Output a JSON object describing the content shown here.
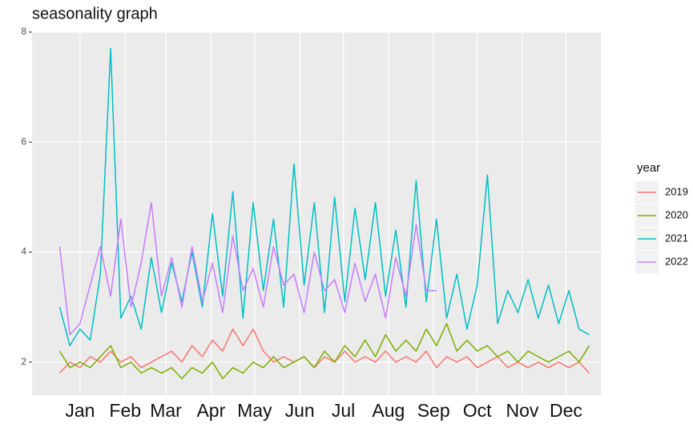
{
  "chart_data": {
    "type": "line",
    "title": "seasonality graph",
    "x": [
      1,
      8,
      15,
      22,
      29,
      36,
      43,
      50,
      57,
      64,
      71,
      78,
      85,
      92,
      99,
      106,
      113,
      120,
      127,
      134,
      141,
      148,
      155,
      162,
      169,
      176,
      183,
      190,
      197,
      204,
      211,
      218,
      225,
      232,
      239,
      246,
      253,
      260,
      267,
      274,
      281,
      288,
      295,
      302,
      309,
      316,
      323,
      330,
      337,
      344,
      351,
      358,
      365
    ],
    "xlim": [
      -18,
      373
    ],
    "xticks": [
      {
        "value": 15,
        "label": "Jan"
      },
      {
        "value": 46,
        "label": "Feb"
      },
      {
        "value": 74,
        "label": "Mar"
      },
      {
        "value": 105,
        "label": "Apr"
      },
      {
        "value": 135,
        "label": "May"
      },
      {
        "value": 166,
        "label": "Jun"
      },
      {
        "value": 196,
        "label": "Jul"
      },
      {
        "value": 227,
        "label": "Aug"
      },
      {
        "value": 258,
        "label": "Sep"
      },
      {
        "value": 288,
        "label": "Oct"
      },
      {
        "value": 319,
        "label": "Nov"
      },
      {
        "value": 349,
        "label": "Dec"
      }
    ],
    "ylim": [
      1.4,
      8.0
    ],
    "yticks": [
      2,
      4,
      6,
      8
    ],
    "grid": true,
    "legend_title": "year",
    "series": [
      {
        "name": "2019",
        "color": "#f8766d",
        "values": [
          1.8,
          2.0,
          1.9,
          2.1,
          2.0,
          2.2,
          2.0,
          2.1,
          1.9,
          2.0,
          2.1,
          2.2,
          2.0,
          2.3,
          2.1,
          2.4,
          2.2,
          2.6,
          2.3,
          2.6,
          2.2,
          2.0,
          2.1,
          2.0,
          2.1,
          1.9,
          2.1,
          2.0,
          2.2,
          2.0,
          2.1,
          2.0,
          2.2,
          2.0,
          2.1,
          2.0,
          2.2,
          1.9,
          2.1,
          2.0,
          2.1,
          1.9,
          2.0,
          2.1,
          1.9,
          2.0,
          1.9,
          2.0,
          1.9,
          2.0,
          1.9,
          2.0,
          1.8
        ]
      },
      {
        "name": "2020",
        "color": "#7cae00",
        "values": [
          2.2,
          1.9,
          2.0,
          1.9,
          2.1,
          2.3,
          1.9,
          2.0,
          1.8,
          1.9,
          1.8,
          1.9,
          1.7,
          1.9,
          1.8,
          2.0,
          1.7,
          1.9,
          1.8,
          2.0,
          1.9,
          2.1,
          1.9,
          2.0,
          2.1,
          1.9,
          2.2,
          2.0,
          2.3,
          2.1,
          2.4,
          2.1,
          2.5,
          2.2,
          2.4,
          2.2,
          2.6,
          2.3,
          2.7,
          2.2,
          2.4,
          2.2,
          2.3,
          2.1,
          2.2,
          2.0,
          2.2,
          2.1,
          2.0,
          2.1,
          2.2,
          2.0,
          2.3
        ]
      },
      {
        "name": "2021",
        "color": "#00bfc4",
        "values": [
          3.0,
          2.3,
          2.6,
          2.4,
          3.6,
          7.7,
          2.8,
          3.2,
          2.6,
          3.9,
          2.9,
          3.8,
          3.1,
          4.0,
          3.0,
          4.7,
          3.2,
          5.1,
          2.8,
          4.9,
          3.3,
          4.6,
          3.0,
          5.6,
          3.4,
          4.9,
          2.9,
          5.0,
          3.1,
          4.8,
          3.5,
          4.9,
          3.2,
          4.4,
          3.0,
          5.3,
          3.1,
          4.6,
          2.8,
          3.6,
          2.6,
          3.4,
          5.4,
          2.7,
          3.3,
          2.9,
          3.5,
          2.8,
          3.4,
          2.7,
          3.3,
          2.6,
          2.5
        ]
      },
      {
        "name": "2022",
        "color": "#c77cff",
        "values": [
          4.1,
          2.5,
          2.7,
          3.4,
          4.1,
          3.2,
          4.6,
          3.0,
          3.8,
          4.9,
          3.2,
          3.9,
          3.0,
          4.1,
          3.1,
          3.8,
          2.9,
          4.3,
          3.3,
          3.7,
          3.0,
          4.1,
          3.4,
          3.6,
          2.9,
          4.0,
          3.3,
          3.5,
          2.9,
          3.8,
          3.1,
          3.6,
          2.8,
          3.9,
          3.2,
          4.5,
          3.3,
          3.3,
          null,
          null,
          null,
          null,
          null,
          null,
          null,
          null,
          null,
          null,
          null,
          null,
          null,
          null,
          null
        ]
      }
    ]
  }
}
